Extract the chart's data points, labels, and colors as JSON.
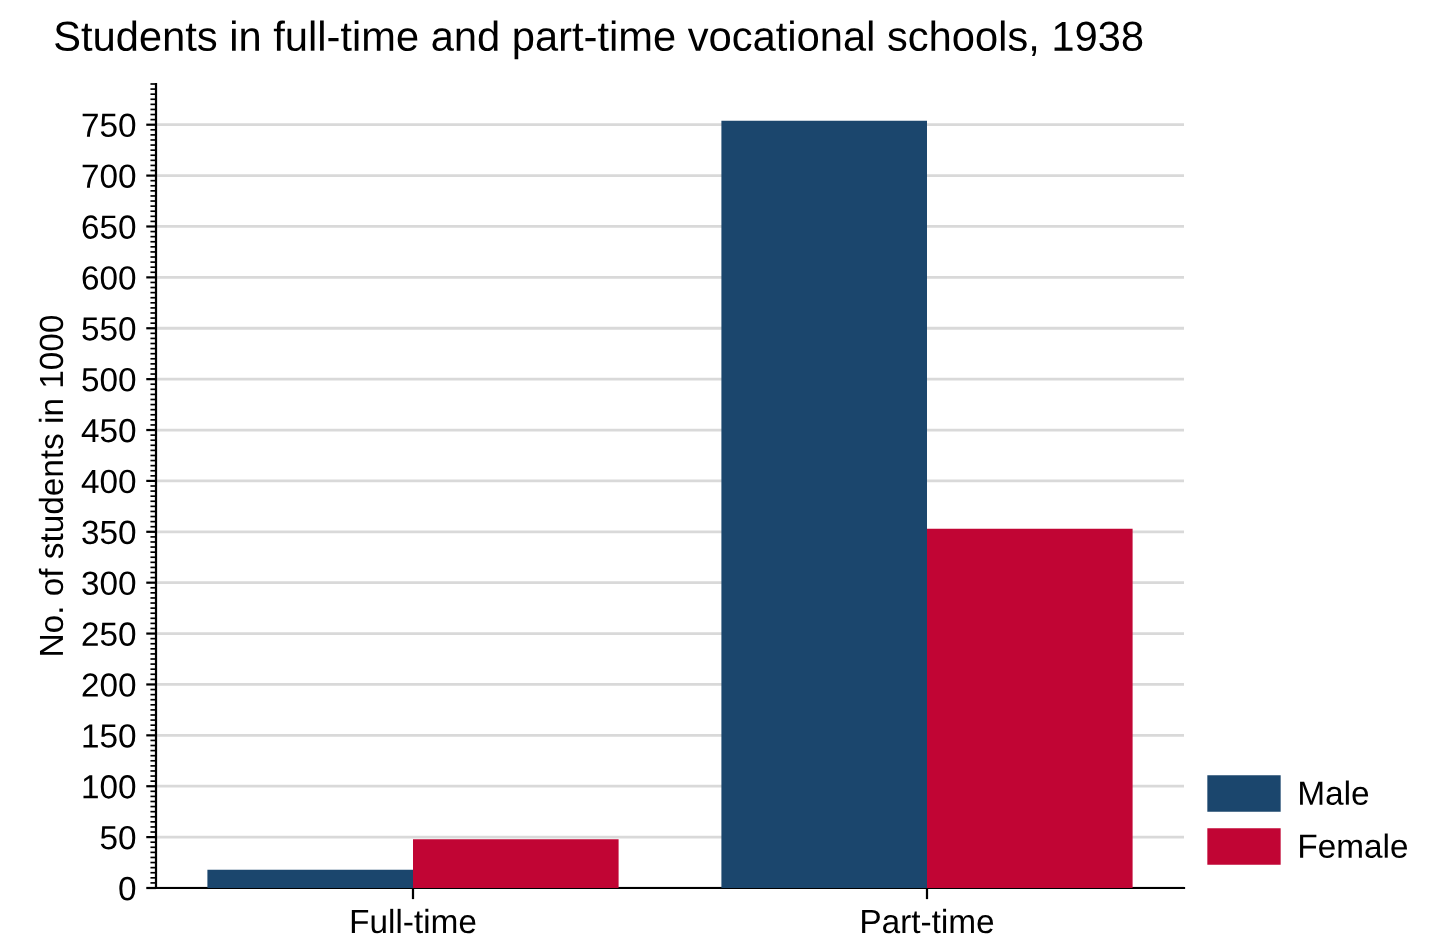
{
  "chart_data": {
    "type": "bar",
    "title": "Students in full-time and part-time vocational schools, 1938",
    "ylabel": "No. of students in 1000",
    "categories": [
      "Full-time",
      "Part-time"
    ],
    "series": [
      {
        "name": "Male",
        "color": "#1b466d",
        "values": [
          18,
          754
        ]
      },
      {
        "name": "Female",
        "color": "#c10534",
        "values": [
          48,
          353
        ]
      }
    ],
    "ylim": [
      0,
      790
    ],
    "yticks": [
      0,
      50,
      100,
      150,
      200,
      250,
      300,
      350,
      400,
      450,
      500,
      550,
      600,
      650,
      700,
      750
    ],
    "grid": "y",
    "legend": "bottom right"
  }
}
